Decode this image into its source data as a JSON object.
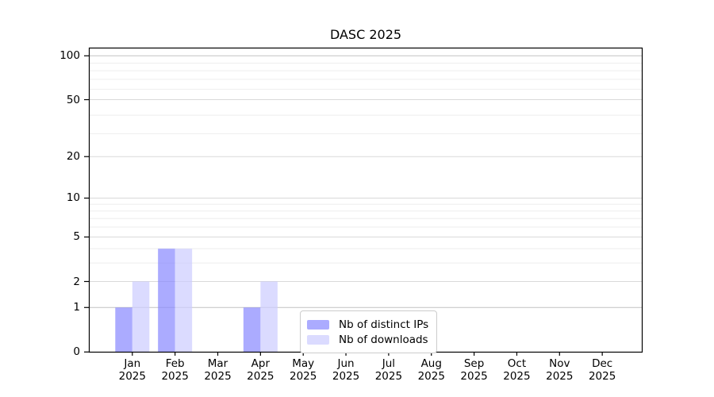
{
  "chart_data": {
    "type": "bar",
    "title": "DASC 2025",
    "categories": [
      {
        "month": "Jan",
        "year": "2025"
      },
      {
        "month": "Feb",
        "year": "2025"
      },
      {
        "month": "Mar",
        "year": "2025"
      },
      {
        "month": "Apr",
        "year": "2025"
      },
      {
        "month": "May",
        "year": "2025"
      },
      {
        "month": "Jun",
        "year": "2025"
      },
      {
        "month": "Jul",
        "year": "2025"
      },
      {
        "month": "Aug",
        "year": "2025"
      },
      {
        "month": "Sep",
        "year": "2025"
      },
      {
        "month": "Oct",
        "year": "2025"
      },
      {
        "month": "Nov",
        "year": "2025"
      },
      {
        "month": "Dec",
        "year": "2025"
      }
    ],
    "series": [
      {
        "name": "Nb of distinct IPs",
        "color": "#8888ff",
        "alpha": 0.7,
        "values": [
          1,
          4,
          0,
          1,
          0,
          0,
          0,
          0,
          0,
          0,
          0,
          0
        ]
      },
      {
        "name": "Nb of downloads",
        "color": "#ccccff",
        "alpha": 0.7,
        "values": [
          2,
          4,
          0,
          2,
          0,
          0,
          0,
          0,
          0,
          0,
          0,
          0
        ]
      }
    ],
    "yscale": "log1p",
    "yticks": [
      {
        "label": "0",
        "value": 0
      },
      {
        "label": "1",
        "value": 1
      },
      {
        "label": "2",
        "value": 2
      },
      {
        "label": "5",
        "value": 5
      },
      {
        "label": "10",
        "value": 10
      },
      {
        "label": "20",
        "value": 20
      },
      {
        "label": "50",
        "value": 50
      },
      {
        "label": "100",
        "value": 100
      }
    ],
    "ylim": [
      0,
      110
    ],
    "grid": "on",
    "legend": {
      "position": "inside lower center"
    }
  },
  "colors": {
    "background": "#ffffff",
    "axis": "#000000",
    "grid_major": "#d9d9d9",
    "grid_minor": "#eeeeee",
    "grid_emphasis": "#c2c2c2",
    "legend_border": "#cccccc"
  }
}
